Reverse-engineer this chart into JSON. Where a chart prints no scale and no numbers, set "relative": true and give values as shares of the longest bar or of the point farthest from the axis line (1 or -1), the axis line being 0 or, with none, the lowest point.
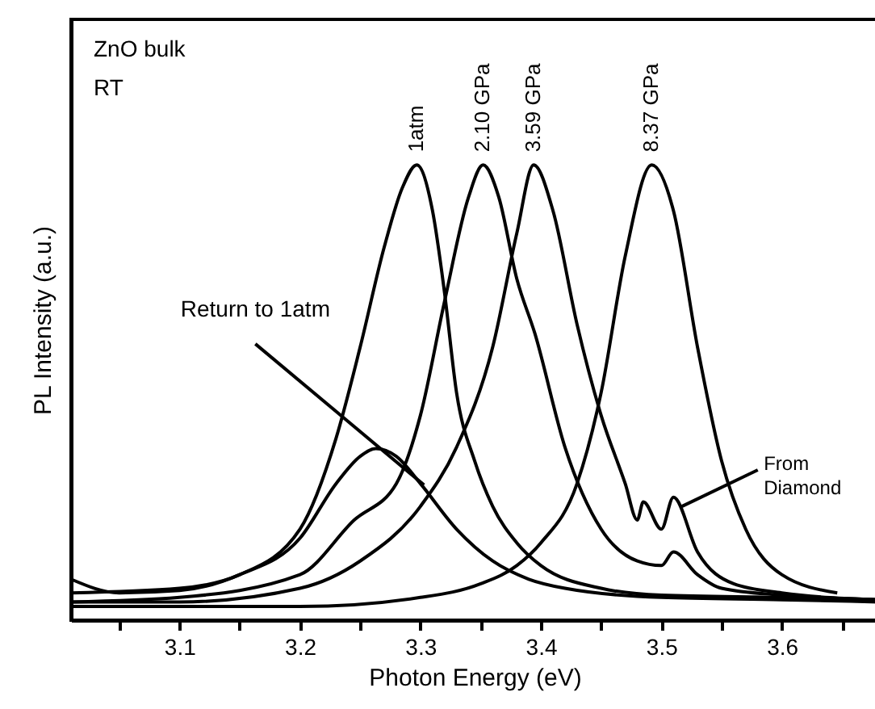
{
  "chart_data": {
    "type": "line",
    "relative": true,
    "xlabel": "Photon Energy (eV)",
    "ylabel": "PL Intensity (a.u.)",
    "xlim": [
      3.01,
      3.68
    ],
    "xticks": [
      {
        "value": 3.05,
        "label": null
      },
      3.1,
      {
        "value": 3.15,
        "label": null
      },
      3.2,
      {
        "value": 3.25,
        "label": null
      },
      3.3,
      {
        "value": 3.35,
        "label": null
      },
      3.4,
      {
        "value": 3.45,
        "label": null
      },
      3.5,
      {
        "value": 3.55,
        "label": null
      },
      3.6,
      {
        "value": 3.65,
        "label": null
      }
    ],
    "grid": false,
    "line_style": "solid",
    "marker": "none",
    "series": [
      {
        "name": "1atm",
        "color": "#000000",
        "x": [
          3.01,
          3.1,
          3.15,
          3.2,
          3.23,
          3.25,
          3.27,
          3.285,
          3.297,
          3.31,
          3.32,
          3.33,
          3.345,
          3.36,
          3.38,
          3.4,
          3.45,
          3.5,
          3.6,
          3.68
        ],
        "values": [
          0.06,
          0.07,
          0.1,
          0.2,
          0.4,
          0.6,
          0.82,
          0.95,
          1.0,
          0.9,
          0.72,
          0.5,
          0.35,
          0.25,
          0.17,
          0.12,
          0.07,
          0.055,
          0.05,
          0.045
        ]
      },
      {
        "name": "2.10 GPa",
        "color": "#000000",
        "x": [
          3.01,
          3.1,
          3.2,
          3.245,
          3.28,
          3.3,
          3.32,
          3.34,
          3.352,
          3.365,
          3.38,
          3.395,
          3.42,
          3.45,
          3.48,
          3.5,
          3.51,
          3.53,
          3.55,
          3.6,
          3.68
        ],
        "values": [
          0.04,
          0.05,
          0.1,
          0.22,
          0.3,
          0.45,
          0.7,
          0.93,
          1.0,
          0.93,
          0.75,
          0.63,
          0.38,
          0.2,
          0.13,
          0.12,
          0.15,
          0.1,
          0.07,
          0.055,
          0.045
        ]
      },
      {
        "name": "3.59 GPa",
        "color": "#000000",
        "x": [
          3.01,
          3.1,
          3.2,
          3.25,
          3.3,
          3.33,
          3.36,
          3.38,
          3.394,
          3.41,
          3.43,
          3.45,
          3.47,
          3.48,
          3.485,
          3.5,
          3.51,
          3.53,
          3.56,
          3.6,
          3.68
        ],
        "values": [
          0.04,
          0.04,
          0.07,
          0.13,
          0.25,
          0.38,
          0.6,
          0.85,
          1.0,
          0.9,
          0.65,
          0.45,
          0.3,
          0.22,
          0.26,
          0.2,
          0.27,
          0.15,
          0.08,
          0.06,
          0.045
        ]
      },
      {
        "name": "8.37 GPa",
        "color": "#000000",
        "x": [
          3.01,
          3.2,
          3.3,
          3.35,
          3.38,
          3.4,
          3.43,
          3.45,
          3.47,
          3.492,
          3.51,
          3.53,
          3.55,
          3.57,
          3.6,
          3.646
        ],
        "values": [
          0.03,
          0.03,
          0.05,
          0.08,
          0.12,
          0.17,
          0.3,
          0.5,
          0.8,
          1.0,
          0.9,
          0.6,
          0.35,
          0.2,
          0.1,
          0.06
        ]
      },
      {
        "name": "Return to 1atm",
        "color": "#000000",
        "x": [
          3.01,
          3.05,
          3.1,
          3.15,
          3.2,
          3.23,
          3.25,
          3.263,
          3.28,
          3.3,
          3.33,
          3.36,
          3.39,
          3.42,
          3.5,
          3.6,
          3.68
        ],
        "values": [
          0.09,
          0.06,
          0.065,
          0.1,
          0.18,
          0.3,
          0.36,
          0.377,
          0.36,
          0.3,
          0.2,
          0.13,
          0.09,
          0.07,
          0.05,
          0.045,
          0.04
        ]
      }
    ],
    "annotations": [
      "ZnO bulk",
      "RT",
      {
        "text": "From Diamond",
        "x": 3.51,
        "y": 0.27
      }
    ]
  }
}
